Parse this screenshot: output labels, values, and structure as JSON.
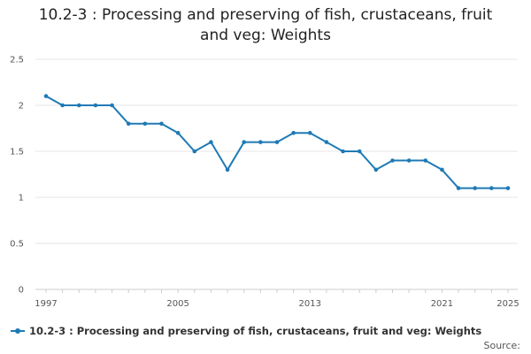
{
  "chart_data": {
    "type": "line",
    "title_lines": [
      "10.2-3 : Processing and preserving of fish, crustaceans, fruit",
      "and veg: Weights"
    ],
    "title": "10.2-3 : Processing and preserving of fish, crustaceans, fruit and veg: Weights",
    "xlabel": "",
    "ylabel": "",
    "xlim": [
      1997,
      2025
    ],
    "ylim": [
      0,
      2.5
    ],
    "x_ticks": [
      "1997",
      "2005",
      "2013",
      "2021",
      "2025"
    ],
    "y_ticks": [
      "0",
      "0.5",
      "1",
      "1.5",
      "2",
      "2.5"
    ],
    "grid": true,
    "legend_position": "bottom-left",
    "series": [
      {
        "name": "10.2-3 : Processing and preserving of fish, crustaceans, fruit and veg: Weights",
        "color": "#1f7ab5",
        "x": [
          1997,
          1998,
          1999,
          2000,
          2001,
          2002,
          2003,
          2004,
          2005,
          2006,
          2007,
          2008,
          2009,
          2010,
          2011,
          2012,
          2013,
          2014,
          2015,
          2016,
          2017,
          2018,
          2019,
          2020,
          2021,
          2022,
          2023,
          2024,
          2025
        ],
        "values": [
          2.1,
          2.0,
          2.0,
          2.0,
          2.0,
          1.8,
          1.8,
          1.8,
          1.7,
          1.5,
          1.6,
          1.3,
          1.6,
          1.6,
          1.6,
          1.7,
          1.7,
          1.6,
          1.5,
          1.5,
          1.3,
          1.4,
          1.4,
          1.4,
          1.3,
          1.1,
          1.1,
          1.1,
          1.1
        ]
      }
    ]
  },
  "legend": {
    "label": "10.2-3 : Processing and preserving of fish, crustaceans, fruit and veg: Weights"
  },
  "footer": {
    "source_label": "Source:"
  }
}
